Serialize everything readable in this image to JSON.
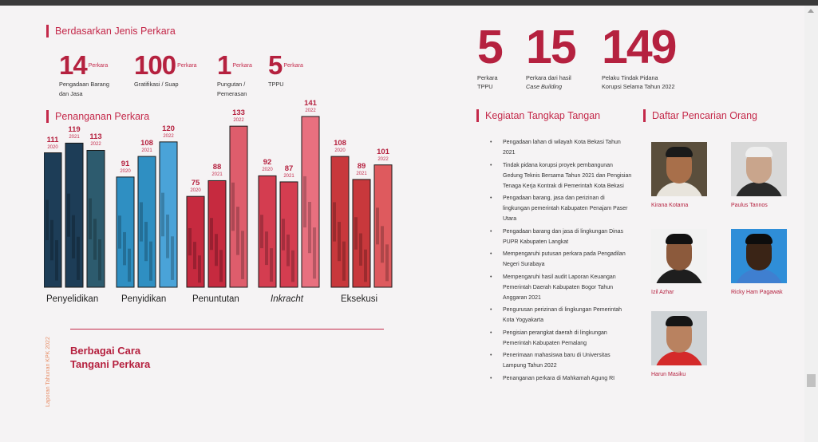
{
  "colors": {
    "accent": "#c4294a",
    "number": "#b5213f"
  },
  "jenis": {
    "title": "Berdasarkan Jenis Perkara",
    "stats": [
      {
        "number": "14",
        "unit": "Perkara",
        "desc": "Pengadaan Barang dan Jasa"
      },
      {
        "number": "100",
        "unit": "Perkara",
        "desc": "Gratifikasi / Suap"
      },
      {
        "number": "1",
        "unit": "Perkara",
        "desc": "Pungutan / Pemerasan"
      },
      {
        "number": "5",
        "unit": "Perkara",
        "desc": "TPPU"
      }
    ]
  },
  "summary": [
    {
      "number": "5",
      "line1": "Perkara",
      "line2": "TPPU",
      "italic": false
    },
    {
      "number": "15",
      "line1": "Perkara dari hasil",
      "line2": "Case Building",
      "italic": true
    },
    {
      "number": "149",
      "line1": "Pelaku Tindak Pidana",
      "line2": "Korupsi Selama Tahun 2022",
      "italic": false
    }
  ],
  "penanganan": {
    "title": "Penanganan Perkara"
  },
  "chart_data": {
    "type": "bar",
    "title": "Penanganan Perkara",
    "categories": [
      "Penyelidikan",
      "Penyidikan",
      "Penuntutan",
      "Inkracht",
      "Eksekusi"
    ],
    "years": [
      "2020",
      "2021",
      "2022"
    ],
    "series": [
      {
        "name": "2020",
        "values": [
          111,
          91,
          75,
          92,
          108
        ]
      },
      {
        "name": "2021",
        "values": [
          119,
          108,
          88,
          87,
          89
        ]
      },
      {
        "name": "2022",
        "values": [
          113,
          120,
          133,
          141,
          101
        ]
      }
    ],
    "group_colors": [
      "#1d3d57",
      "#2f8fc2",
      "#c62a3f",
      "#d43d50",
      "#c8383c"
    ],
    "group_colors_light": [
      "#2d5b6e",
      "#4aa3d8",
      "#de5d6c",
      "#e8707f",
      "#de5a5e"
    ],
    "italic_categories": [
      "Inkracht"
    ],
    "ylim": [
      0,
      150
    ],
    "grid": false
  },
  "closing": {
    "line1": "Berbagai Cara",
    "line2": "Tangani Perkara"
  },
  "footer_caption": "Laporan Tahunan KPK 2022",
  "ott": {
    "title": "Kegiatan Tangkap Tangan",
    "items": [
      "Pengadaan lahan di wilayah Kota Bekasi Tahun 2021",
      "Tindak pidana korupsi proyek pembangunan Gedung Teknis Bersama Tahun 2021 dan Pengisian Tenaga Kerja Kontrak di Pemerintah Kota Bekasi",
      "Pengadaan barang, jasa dan perizinan di lingkungan pemerintah Kabupaten Penajam Paser Utara",
      "Pengadaan barang dan jasa di lingkungan Dinas PUPR Kabupaten Langkat",
      "Mempengaruhi putusan perkara pada Pengadilan Negeri Surabaya",
      "Mempengaruhi hasil audit Laporan Keuangan Pemerintah Daerah Kabupaten Bogor Tahun Anggaran 2021",
      "Pengurusan perizinan di lingkungan Pemerintah Kota Yogyakarta",
      "Pengisian perangkat daerah di lingkungan Pemerintah Kabupaten Pemalang",
      "Penerimaan mahasiswa baru di Universitas Lampung Tahun 2022",
      "Penanganan perkara di Mahkamah Agung RI"
    ]
  },
  "dpo": {
    "title": "Daftar Pencarian Orang",
    "people": [
      {
        "name": "Kirana Kotama",
        "photo_bg": "#5a4e3c",
        "skin": "#a86f4a",
        "shirt": "#e8e4dc",
        "hair": "#1a1a1a"
      },
      {
        "name": "Paulus Tannos",
        "photo_bg": "#d8d8d8",
        "skin": "#c9a58c",
        "shirt": "#2a2a2a",
        "hair": "#eeeeee"
      },
      {
        "name": "Izil Azhar",
        "photo_bg": "#f2f2f2",
        "skin": "#8c5a3c",
        "shirt": "#1e1e1e",
        "hair": "#111111"
      },
      {
        "name": "Ricky Ham Pagawak",
        "photo_bg": "#2f8ed8",
        "skin": "#3a2416",
        "shirt": "#3f7fd0",
        "hair": "#0d0d0d"
      },
      {
        "name": "Harun Masiku",
        "photo_bg": "#cfd3d6",
        "skin": "#b98260",
        "shirt": "#d42a2a",
        "hair": "#151515"
      }
    ]
  }
}
